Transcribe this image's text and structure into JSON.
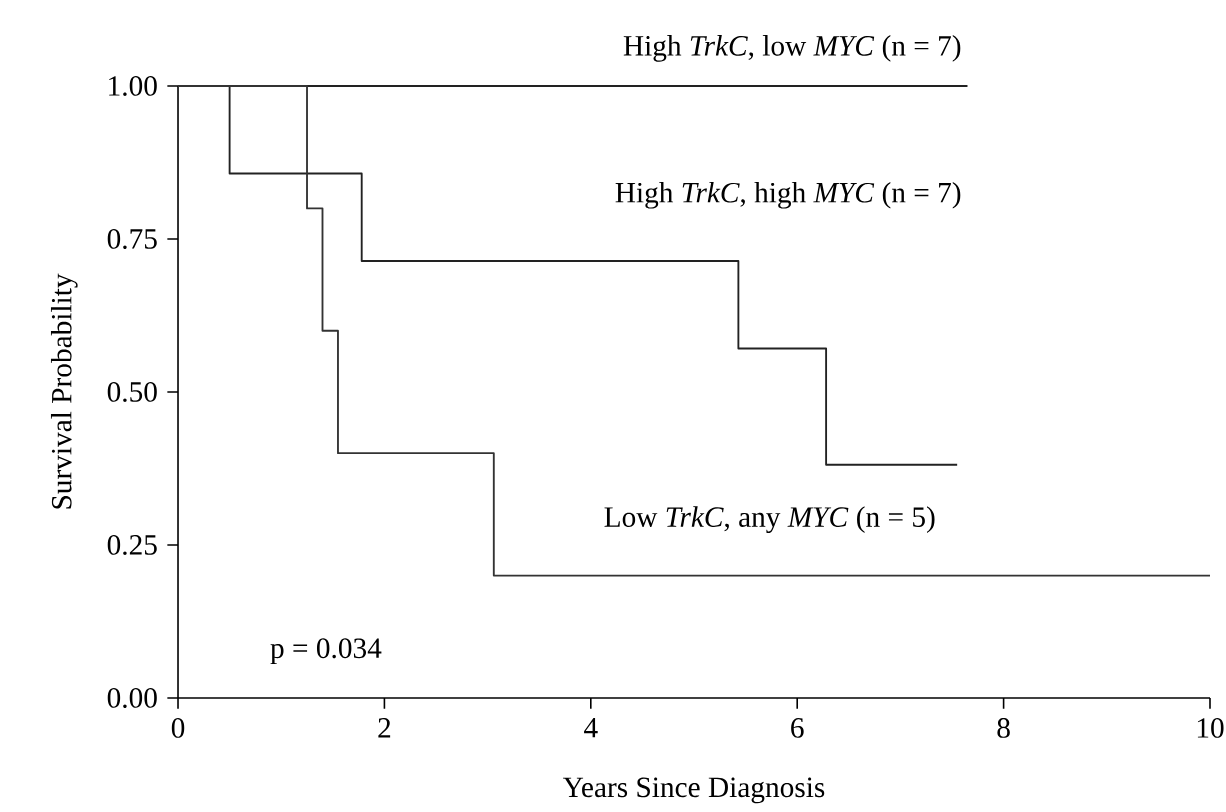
{
  "chart_data": {
    "type": "step",
    "xlabel": "Years Since Diagnosis",
    "ylabel": "Survival Probability",
    "xlim": [
      0,
      10
    ],
    "ylim": [
      0,
      1
    ],
    "xticks": [
      0,
      2,
      4,
      6,
      8,
      10
    ],
    "yticks": [
      {
        "value": 0,
        "label": "0.00"
      },
      {
        "value": 0.25,
        "label": "0.25"
      },
      {
        "value": 0.5,
        "label": "0.50"
      },
      {
        "value": 0.75,
        "label": "0.75"
      },
      {
        "value": 1,
        "label": "1.00"
      }
    ],
    "annotations": [
      "p = 0.034"
    ],
    "series": [
      {
        "name": "High *TrkC*, low *MYC* (n = 7)",
        "color": "#222222",
        "x": [
          0,
          7.65
        ],
        "values": [
          1,
          1
        ]
      },
      {
        "name": "High *TrkC*, high *MYC* (n = 7)",
        "color": "#222222",
        "x": [
          0,
          0.5,
          1.78,
          5.43,
          6.28,
          7.55
        ],
        "values": [
          1,
          0.857,
          0.714,
          0.571,
          0.381,
          0.381
        ]
      },
      {
        "name": "Low *TrkC*, any *MYC* (n = 5)",
        "color": "#333333",
        "x": [
          0,
          1.25,
          1.4,
          1.55,
          3.06,
          10
        ],
        "values": [
          1,
          0.8,
          0.6,
          0.4,
          0.2,
          0.2
        ]
      }
    ]
  }
}
